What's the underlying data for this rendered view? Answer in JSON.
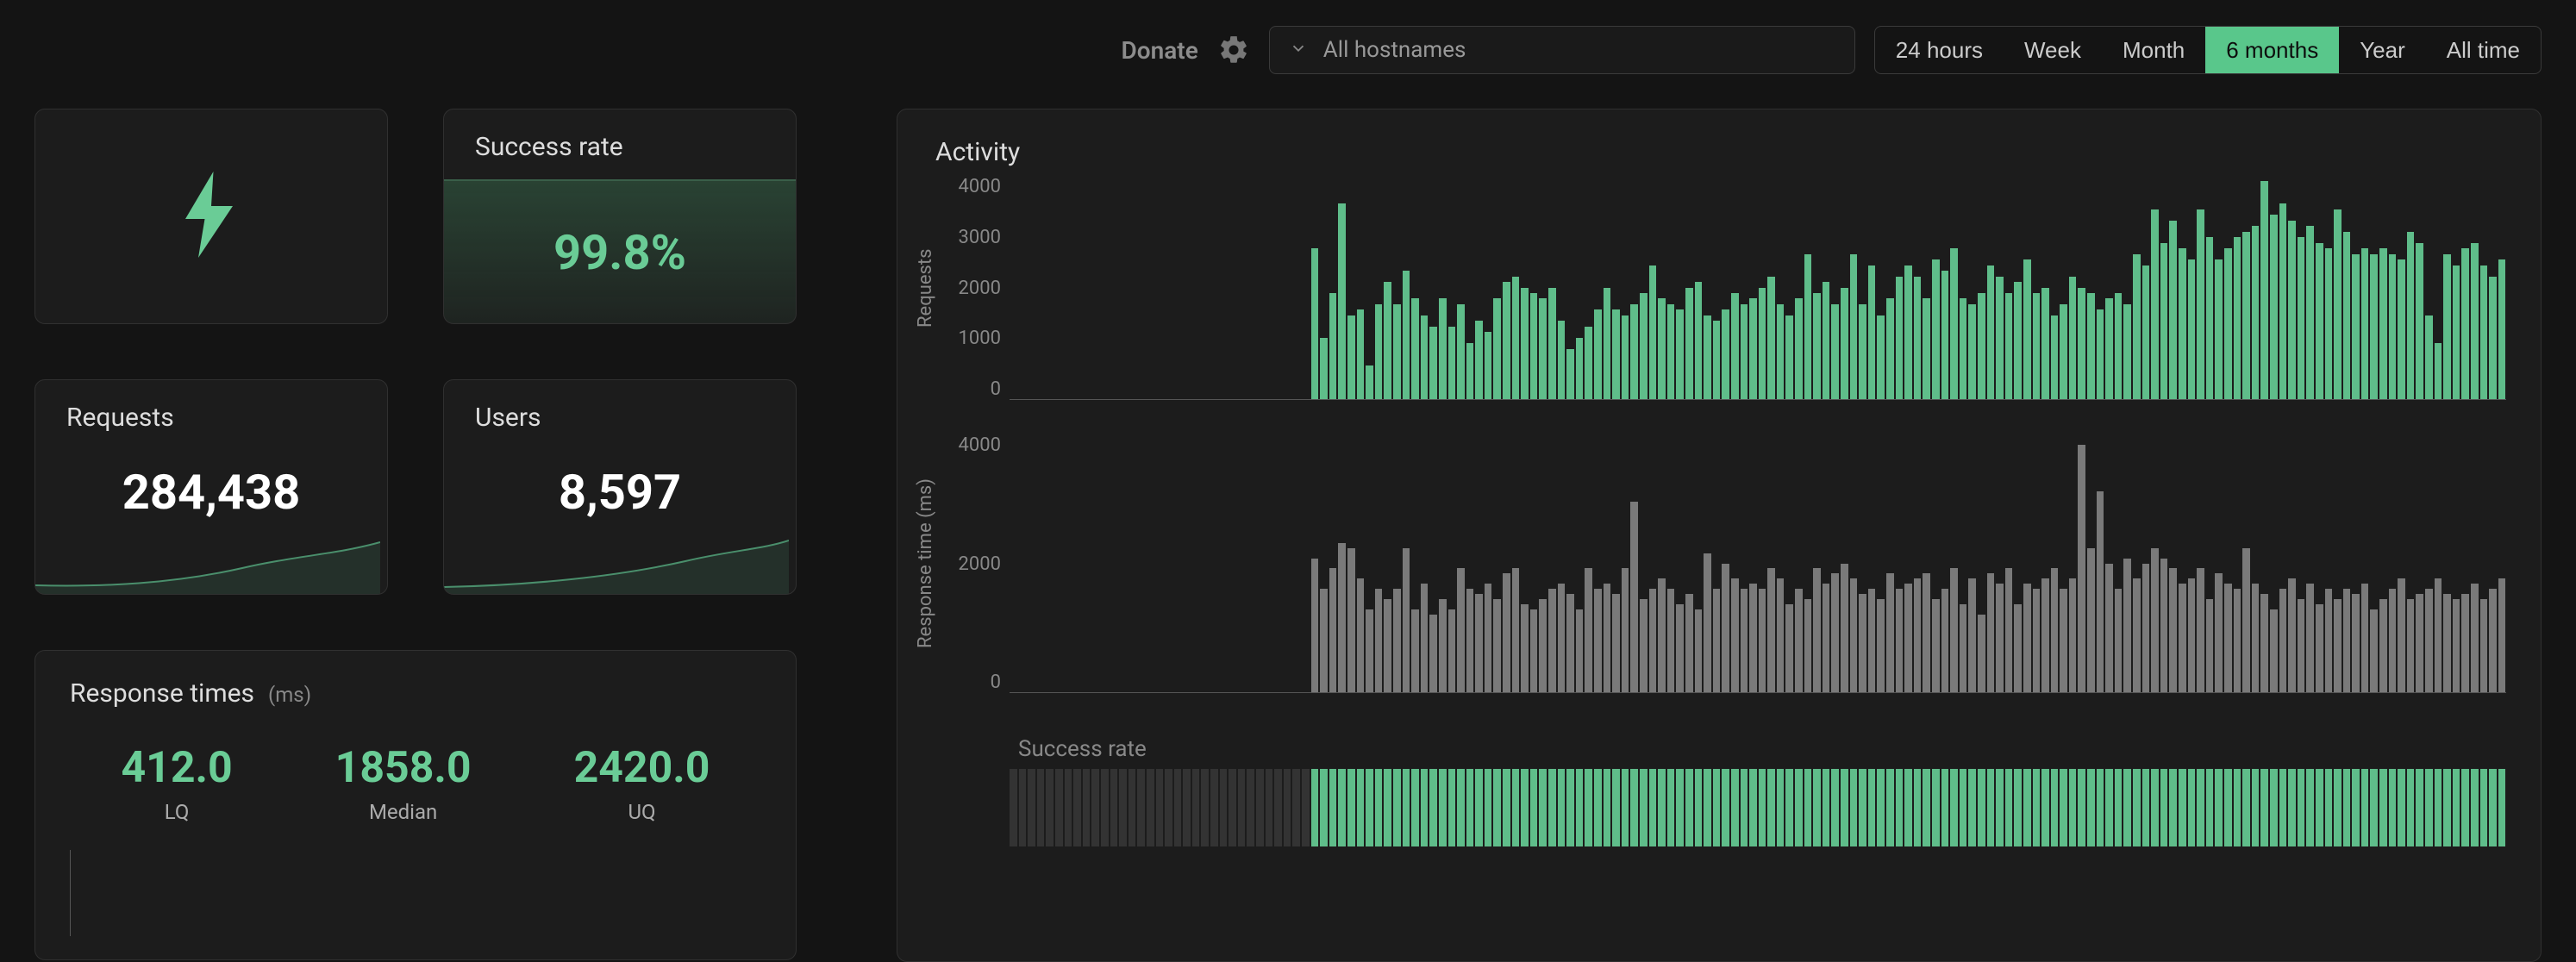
{
  "topbar": {
    "donate": "Donate",
    "hostname_placeholder": "All hostnames",
    "ranges": [
      "24 hours",
      "Week",
      "Month",
      "6 months",
      "Year",
      "All time"
    ],
    "active_range_index": 3
  },
  "colors": {
    "accent": "#6acc96",
    "bar_green": "#5fbd8a",
    "bar_grey": "#7a7a7a",
    "background": "#141414",
    "card": "#1c1c1c",
    "border": "#303030"
  },
  "cards": {
    "success_rate": {
      "title": "Success rate",
      "value": "99.8%"
    },
    "requests": {
      "title": "Requests",
      "value": "284,438"
    },
    "users": {
      "title": "Users",
      "value": "8,597"
    },
    "response_times": {
      "title": "Response times",
      "unit": "(ms)",
      "lq": {
        "value": "412.0",
        "label": "LQ"
      },
      "median": {
        "value": "1858.0",
        "label": "Median"
      },
      "uq": {
        "value": "2420.0",
        "label": "UQ"
      }
    }
  },
  "activity": {
    "title": "Activity",
    "requests_chart": {
      "ylabel": "Requests",
      "yticks": [
        "4000",
        "3000",
        "2000",
        "1000",
        "0"
      ],
      "ymax": 4000,
      "leading_empty_bars": 33,
      "values": [
        2700,
        1100,
        1900,
        3500,
        1500,
        1600,
        600,
        1700,
        2100,
        1700,
        2300,
        1800,
        1500,
        1300,
        1800,
        1300,
        1700,
        1000,
        1400,
        1200,
        1800,
        2100,
        2200,
        2000,
        1900,
        1800,
        2000,
        1400,
        900,
        1100,
        1300,
        1600,
        2000,
        1600,
        1500,
        1700,
        1900,
        2400,
        1800,
        1700,
        1600,
        2000,
        2100,
        1500,
        1400,
        1600,
        1900,
        1700,
        1800,
        2000,
        2200,
        1700,
        1500,
        1800,
        2600,
        1900,
        2100,
        1700,
        2000,
        2600,
        1700,
        2400,
        1500,
        1800,
        2200,
        2400,
        2200,
        1800,
        2500,
        2300,
        2700,
        1800,
        1700,
        1900,
        2400,
        2200,
        1900,
        2100,
        2500,
        1900,
        2000,
        1500,
        1700,
        2200,
        2000,
        1900,
        1600,
        1800,
        1900,
        1700,
        2600,
        2400,
        3400,
        2800,
        3200,
        2700,
        2500,
        3400,
        2900,
        2500,
        2700,
        2900,
        3000,
        3100,
        3900,
        3300,
        3500,
        3200,
        2900,
        3100,
        2800,
        2700,
        3400,
        3000,
        2600,
        2700,
        2600,
        2700,
        2600,
        2500,
        3000,
        2800,
        1500,
        1000,
        2600,
        2400,
        2700,
        2800,
        2400,
        2200,
        2500
      ]
    },
    "response_chart": {
      "ylabel": "Response time (ms)",
      "yticks": [
        "4000",
        "2000",
        "0"
      ],
      "ymax": 5000,
      "leading_empty_bars": 33,
      "values": [
        2600,
        2000,
        2400,
        2900,
        2800,
        2200,
        1600,
        2000,
        1800,
        2000,
        2800,
        1600,
        2100,
        1500,
        1800,
        1600,
        2400,
        2000,
        1900,
        2100,
        1800,
        2300,
        2400,
        1700,
        1600,
        1800,
        2000,
        2100,
        1900,
        1600,
        2400,
        2000,
        2100,
        1900,
        2400,
        3700,
        1800,
        2000,
        2200,
        2000,
        1700,
        1900,
        1600,
        2700,
        2000,
        2500,
        2200,
        2000,
        2100,
        2000,
        2400,
        2200,
        1700,
        2000,
        1800,
        2400,
        2100,
        2300,
        2500,
        2200,
        1900,
        2000,
        1800,
        2300,
        2000,
        2100,
        2200,
        2300,
        1800,
        2000,
        2400,
        1700,
        2200,
        1500,
        2300,
        2100,
        2400,
        1700,
        2100,
        2000,
        2200,
        2400,
        2000,
        2200,
        4800,
        2800,
        3900,
        2500,
        2000,
        2600,
        2200,
        2500,
        2800,
        2600,
        2400,
        2100,
        2200,
        2400,
        1800,
        2300,
        2100,
        2000,
        2800,
        2100,
        1900,
        1600,
        2000,
        2200,
        1800,
        2100,
        1700,
        2000,
        1800,
        2000,
        1900,
        2100,
        1600,
        1800,
        2000,
        2200,
        1800,
        1900,
        2000,
        2200,
        1900,
        1800,
        1900,
        2100,
        1800,
        2000,
        2200
      ]
    },
    "success_chart": {
      "label": "Success rate",
      "leading_ghost_bars": 33,
      "full_bars": 131
    }
  }
}
